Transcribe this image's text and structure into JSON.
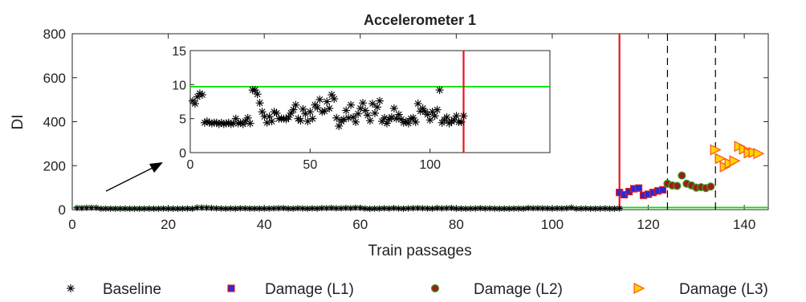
{
  "chart_data": {
    "type": "scatter",
    "title": "Accelerometer 1",
    "xlabel": "Train passages",
    "ylabel": "DI",
    "xlim": [
      0,
      145
    ],
    "ylim": [
      0,
      800
    ],
    "xticks": [
      0,
      20,
      40,
      60,
      80,
      100,
      120,
      140
    ],
    "yticks": [
      0,
      200,
      400,
      600,
      800
    ],
    "grid": false,
    "legend_position": "bottom",
    "threshold": {
      "value": 9.7,
      "color": "#00e000"
    },
    "damage_onset_x": 114,
    "damage_onset_color": "#e8141b",
    "level_boundaries_x": [
      124,
      134
    ],
    "series": [
      {
        "name": "Baseline",
        "marker": "asterisk",
        "color": "#000000",
        "x": [
          1,
          2,
          3,
          4,
          5,
          6,
          7,
          8,
          9,
          10,
          11,
          12,
          13,
          14,
          15,
          16,
          17,
          18,
          19,
          20,
          21,
          22,
          23,
          24,
          25,
          26,
          27,
          28,
          29,
          30,
          31,
          32,
          33,
          34,
          35,
          36,
          37,
          38,
          39,
          40,
          41,
          42,
          43,
          44,
          45,
          46,
          47,
          48,
          49,
          50,
          51,
          52,
          53,
          54,
          55,
          56,
          57,
          58,
          59,
          60,
          61,
          62,
          63,
          64,
          65,
          66,
          67,
          68,
          69,
          70,
          71,
          72,
          73,
          74,
          75,
          76,
          77,
          78,
          79,
          80,
          81,
          82,
          83,
          84,
          85,
          86,
          87,
          88,
          89,
          90,
          91,
          92,
          93,
          94,
          95,
          96,
          97,
          98,
          99,
          100,
          101,
          102,
          103,
          104,
          105,
          106,
          107,
          108,
          109,
          110,
          111,
          112,
          113,
          114
        ],
        "values": [
          7.6,
          7.2,
          8.2,
          8.7,
          8.5,
          4.4,
          4.6,
          4.4,
          4.3,
          4.4,
          4.4,
          4.2,
          4.4,
          4.2,
          4.3,
          4.4,
          4.2,
          4.3,
          5.0,
          4.3,
          4.4,
          4.2,
          4.6,
          5.1,
          4.3,
          9.2,
          9.2,
          8.6,
          7.3,
          6.0,
          5.3,
          4.4,
          5.3,
          4.6,
          6.0,
          5.8,
          5.0,
          5.0,
          5.0,
          4.9,
          5.2,
          5.8,
          6.3,
          7.0,
          5.0,
          4.7,
          6.4,
          5.7,
          4.6,
          6.0,
          5.0,
          7.0,
          6.6,
          7.8,
          6.0,
          6.1,
          7.5,
          6.5,
          8.5,
          7.9,
          5.1,
          3.9,
          4.6,
          4.9,
          6.2,
          5.1,
          7.0,
          5.2,
          4.5,
          5.7,
          6.5,
          7.3,
          6.2,
          5.5,
          4.7,
          7.2,
          5.8,
          6.7,
          7.6,
          4.6,
          5.1,
          4.3,
          4.9,
          5.2,
          6.5,
          5.0,
          5.6,
          4.9,
          4.4,
          4.6,
          4.3,
          5.0,
          5.1,
          4.5,
          7.2,
          6.1,
          6.5,
          6.0,
          5.6,
          4.8,
          6.0,
          5.4,
          6.3,
          9.2,
          4.4,
          4.8,
          5.2,
          4.3,
          4.6,
          4.8,
          5.4,
          4.5,
          4.5,
          5.4
        ]
      },
      {
        "name": "Damage (L1)",
        "marker": "square",
        "color": "#2a2ad6",
        "edge_color": "#e8141b",
        "x": [
          114,
          115,
          116,
          117,
          118,
          119,
          120,
          121,
          122,
          123
        ],
        "values": [
          78,
          68,
          82,
          95,
          98,
          65,
          70,
          78,
          85,
          90
        ]
      },
      {
        "name": "Damage (L2)",
        "marker": "circle",
        "color": "#9c1c1c",
        "edge_color": "#3aa820",
        "x": [
          124,
          125,
          126,
          127,
          128,
          129,
          130,
          131,
          132,
          133
        ],
        "values": [
          118,
          110,
          108,
          155,
          118,
          110,
          100,
          102,
          98,
          105
        ]
      },
      {
        "name": "Damage (L3)",
        "marker": "triangle-right",
        "color": "#ffd500",
        "edge_color": "#ff5a1a",
        "x": [
          134,
          135,
          136,
          137,
          138,
          139,
          140,
          141,
          142,
          143
        ],
        "values": [
          272,
          232,
          195,
          210,
          222,
          288,
          275,
          258,
          260,
          255
        ]
      }
    ],
    "inset": {
      "xlim": [
        0,
        150
      ],
      "ylim": [
        0,
        15
      ],
      "xticks": [
        0,
        50,
        100
      ],
      "yticks": [
        0,
        5,
        10,
        15
      ],
      "shows_series": "Baseline"
    }
  }
}
